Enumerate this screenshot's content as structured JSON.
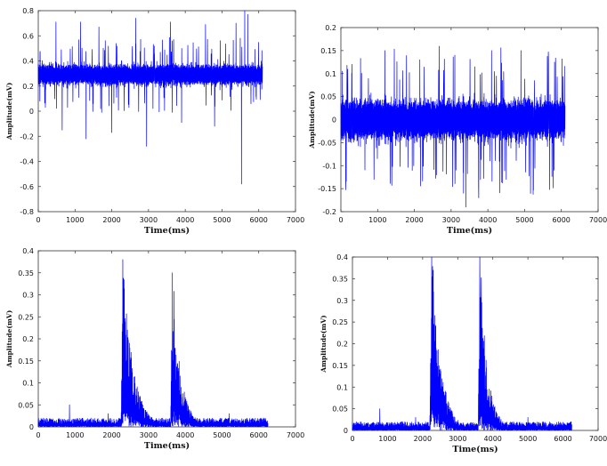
{
  "chart_data": [
    {
      "type": "line",
      "title": "",
      "xlabel": "Time(ms)",
      "ylabel": "Amplitude(mV)",
      "xlim": [
        0,
        7000
      ],
      "ylim": [
        -0.8,
        0.8
      ],
      "xticks": [
        0,
        1000,
        2000,
        3000,
        4000,
        5000,
        6000,
        7000
      ],
      "yticks": [
        -0.8,
        -0.6,
        -0.4,
        -0.2,
        0,
        0.2,
        0.4,
        0.6,
        0.8
      ],
      "ytick_labels": [
        "-0.8",
        "-0.6",
        "-0.4",
        "-0.2",
        "0",
        "0.2",
        "0.4",
        "0.6",
        "0.8"
      ],
      "series_color": "#0000ff",
      "signal": {
        "t_end": 6100,
        "baseline": 0.29,
        "band_halfwidth": 0.12,
        "peaks": [
          [
            480,
            0.71
          ],
          [
            1150,
            0.71
          ],
          [
            1650,
            0.67
          ],
          [
            2650,
            0.74
          ],
          [
            3600,
            0.71
          ],
          [
            4550,
            0.69
          ],
          [
            5380,
            0.7
          ],
          [
            5620,
            0.8
          ],
          [
            5700,
            0.77
          ]
        ],
        "dips": [
          [
            650,
            -0.15
          ],
          [
            1300,
            -0.22
          ],
          [
            2000,
            -0.17
          ],
          [
            2950,
            -0.28
          ],
          [
            3900,
            -0.09
          ],
          [
            4800,
            -0.12
          ],
          [
            5530,
            -0.58
          ]
        ]
      }
    },
    {
      "type": "line",
      "title": "",
      "xlabel": "Time(ms)",
      "ylabel": "Amplitude(mV)",
      "xlim": [
        0,
        7000
      ],
      "ylim": [
        -0.2,
        0.2
      ],
      "xticks": [
        0,
        1000,
        2000,
        3000,
        4000,
        5000,
        6000,
        7000
      ],
      "yticks": [
        -0.2,
        -0.15,
        -0.1,
        -0.05,
        0,
        0.05,
        0.1,
        0.15,
        0.2
      ],
      "ytick_labels": [
        "-0.2",
        "-0.15",
        "-0.1",
        "-0.05",
        "0",
        "0.05",
        "0.1",
        "0.15",
        "0.2"
      ],
      "series_color": "#0000ff",
      "signal": {
        "t_end": 6100,
        "baseline": 0.0,
        "band_halfwidth": 0.065,
        "peaks": [
          [
            300,
            0.12
          ],
          [
            1200,
            0.15
          ],
          [
            2150,
            0.13
          ],
          [
            3100,
            0.14
          ],
          [
            4100,
            0.15
          ],
          [
            4900,
            0.15
          ],
          [
            5650,
            0.13
          ]
        ],
        "dips": [
          [
            900,
            -0.13
          ],
          [
            2600,
            -0.12
          ],
          [
            3400,
            -0.19
          ],
          [
            3750,
            -0.17
          ],
          [
            4500,
            -0.13
          ],
          [
            5800,
            -0.11
          ]
        ]
      }
    },
    {
      "type": "line",
      "title": "",
      "xlabel": "Time(ms)",
      "ylabel": "Amplitude(mV)",
      "xlim": [
        0,
        7000
      ],
      "ylim": [
        0,
        0.4
      ],
      "xticks": [
        0,
        1000,
        2000,
        3000,
        4000,
        5000,
        6000,
        7000
      ],
      "yticks": [
        0,
        0.05,
        0.1,
        0.15,
        0.2,
        0.25,
        0.3,
        0.35,
        0.4
      ],
      "ytick_labels": [
        "0",
        "0.05",
        "0.1",
        "0.15",
        "0.2",
        "0.25",
        "0.3",
        "0.35",
        "0.4"
      ],
      "series_color": "#0000ff",
      "signal": {
        "t_end": 6250,
        "noise_max": 0.02,
        "bursts": [
          {
            "start": 2250,
            "peak_t": 2300,
            "peak": 0.38,
            "decay_ms": 280,
            "end": 3200
          },
          {
            "start": 3600,
            "peak_t": 3650,
            "peak": 0.35,
            "decay_ms": 220,
            "end": 4300
          }
        ],
        "spikes": [
          [
            850,
            0.05
          ],
          [
            1900,
            0.03
          ],
          [
            5200,
            0.03
          ]
        ]
      }
    },
    {
      "type": "line",
      "title": "",
      "xlabel": "Time(ms)",
      "ylabel": "Amplitude(mV)",
      "xlim": [
        0,
        7000
      ],
      "ylim": [
        0,
        0.4
      ],
      "xticks": [
        0,
        1000,
        2000,
        3000,
        4000,
        5000,
        6000,
        7000
      ],
      "yticks": [
        0,
        0.05,
        0.1,
        0.15,
        0.2,
        0.25,
        0.3,
        0.35,
        0.4
      ],
      "ytick_labels": [
        "0",
        "0.05",
        "0.1",
        "0.15",
        "0.2",
        "0.25",
        "0.3",
        "0.35",
        "0.4"
      ],
      "series_color": "#0000ff",
      "signal": {
        "t_end": 6250,
        "noise_max": 0.02,
        "bursts": [
          {
            "start": 2200,
            "peak_t": 2260,
            "peak": 0.42,
            "decay_ms": 260,
            "end": 3200
          },
          {
            "start": 3580,
            "peak_t": 3630,
            "peak": 0.4,
            "decay_ms": 220,
            "end": 4300
          }
        ],
        "spikes": [
          [
            780,
            0.05
          ],
          [
            1800,
            0.03
          ],
          [
            5000,
            0.03
          ]
        ]
      }
    }
  ]
}
